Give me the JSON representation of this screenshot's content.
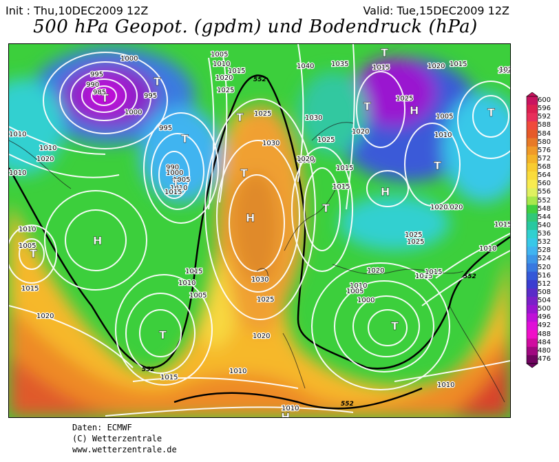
{
  "header": {
    "init": "Init : Thu,10DEC2009 12Z",
    "valid": "Valid: Tue,15DEC2009 12Z",
    "title": "500 hPa Geopot. (gpdm) und Bodendruck (hPa)"
  },
  "footer": {
    "source": "Daten: ECMWF",
    "copyright": "(C) Wetterzentrale",
    "url": "www.wetterzentrale.de"
  },
  "colorbar": {
    "levels": [
      "600",
      "596",
      "592",
      "588",
      "584",
      "580",
      "576",
      "572",
      "568",
      "564",
      "560",
      "556",
      "552",
      "548",
      "544",
      "540",
      "536",
      "532",
      "528",
      "524",
      "520",
      "516",
      "512",
      "508",
      "504",
      "500",
      "496",
      "492",
      "488",
      "484",
      "480",
      "476"
    ],
    "colors": [
      "#c81460",
      "#dc2050",
      "#e8305a",
      "#f04a3c",
      "#e65a28",
      "#e87a28",
      "#f09a28",
      "#f4b428",
      "#f8cc30",
      "#fadc3c",
      "#f8ec50",
      "#e0f060",
      "#a8e84c",
      "#40d040",
      "#30c878",
      "#28c8a0",
      "#30d0d0",
      "#38c8e8",
      "#40b4f0",
      "#3c96e8",
      "#3878e0",
      "#3458d8",
      "#3a3cd0",
      "#5a2cc8",
      "#7a20c8",
      "#9a14d0",
      "#c010d8",
      "#e010d8",
      "#f010c8",
      "#d00ca0",
      "#a00880",
      "#700460"
    ]
  },
  "map": {
    "isobar_labels": [
      "1000",
      "995",
      "990",
      "985",
      "1000",
      "995",
      "1005",
      "1010",
      "1015",
      "1020",
      "1025",
      "1040",
      "1035",
      "1015",
      "1020",
      "1015",
      "1020",
      "1025",
      "1020",
      "995",
      "990",
      "1000",
      "1005",
      "1010",
      "1015",
      "1025",
      "1030",
      "1025",
      "1030",
      "1030",
      "1015",
      "1020",
      "1010",
      "1020",
      "1010",
      "1010",
      "1005",
      "1015",
      "1020",
      "1015",
      "1010",
      "1005",
      "1010",
      "1025",
      "1030",
      "1020",
      "1020",
      "1010",
      "1005",
      "1000",
      "1015",
      "1025",
      "1025",
      "1005",
      "1010",
      "1010",
      "1020",
      "1015",
      "1015",
      "1010",
      "1020",
      "1020",
      "1015",
      "1015",
      "1010",
      "1010"
    ],
    "pressure_centers": [
      {
        "kind": "T"
      },
      {
        "kind": "T"
      },
      {
        "kind": "T"
      },
      {
        "kind": "T"
      },
      {
        "kind": "T"
      },
      {
        "kind": "T"
      },
      {
        "kind": "T"
      },
      {
        "kind": "T"
      },
      {
        "kind": "T"
      },
      {
        "kind": "T"
      },
      {
        "kind": "T"
      },
      {
        "kind": "T"
      },
      {
        "kind": "T"
      },
      {
        "kind": "T"
      },
      {
        "kind": "H"
      },
      {
        "kind": "H"
      },
      {
        "kind": "H"
      },
      {
        "kind": "H"
      },
      {
        "kind": "H"
      }
    ],
    "contour_labels": [
      "552",
      "552",
      "552",
      "552"
    ]
  }
}
